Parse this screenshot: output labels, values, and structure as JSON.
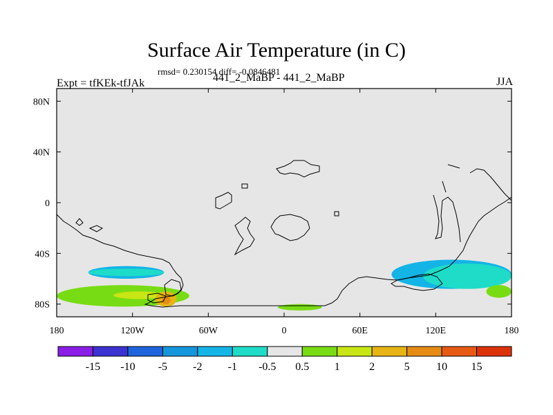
{
  "chart_data": {
    "type": "heatmap",
    "title": "Surface Air Temperature (in C)",
    "stats": "rmsd= 0.230154 diff= -0.0846481",
    "experiment": "Expt = tfKEk-tfJAk",
    "case": "441_2_MaBP - 441_2_MaBP",
    "season": "JJA",
    "x_ticks": [
      "180",
      "120W",
      "60W",
      "0",
      "60E",
      "120E",
      "180"
    ],
    "y_ticks": [
      "80N",
      "40N",
      "0",
      "40S",
      "80S"
    ],
    "xlim": [
      -180,
      180
    ],
    "ylim": [
      -90,
      90
    ],
    "colorbar": {
      "labels": [
        "-15",
        "-10",
        "-5",
        "-2",
        "-1",
        "-0.5",
        "0.5",
        "1",
        "2",
        "5",
        "10",
        "15"
      ],
      "colors": [
        "#8a1ee6",
        "#3c32d2",
        "#1e64dc",
        "#1496dc",
        "#14b4e6",
        "#1edcc8",
        "#e6e6e6",
        "#78dc14",
        "#c8e614",
        "#e6b414",
        "#e68c14",
        "#e65a14",
        "#dc320a"
      ]
    },
    "regions": [
      {
        "value_range": "-2 to -1",
        "color": "#14b4e6",
        "lon": [
          -155,
          -95
        ],
        "lat": [
          -60,
          -50
        ]
      },
      {
        "value_range": "-1 to -0.5",
        "color": "#1edcc8",
        "lon": [
          -155,
          -95
        ],
        "lat": [
          -58,
          -52
        ]
      },
      {
        "value_range": "-2 to -1",
        "color": "#14b4e6",
        "lon": [
          85,
          180
        ],
        "lat": [
          -68,
          -45
        ]
      },
      {
        "value_range": "-1 to -0.5",
        "color": "#1edcc8",
        "lon": [
          110,
          180
        ],
        "lat": [
          -68,
          -48
        ]
      },
      {
        "value_range": "0.5 to 1",
        "color": "#78dc14",
        "lon": [
          -180,
          -75
        ],
        "lat": [
          -82,
          -65
        ]
      },
      {
        "value_range": "0.5 to 1",
        "color": "#78dc14",
        "lon": [
          -5,
          30
        ],
        "lat": [
          -85,
          -80
        ]
      },
      {
        "value_range": "0.5 to 1",
        "color": "#78dc14",
        "lon": [
          160,
          180
        ],
        "lat": [
          -75,
          -65
        ]
      },
      {
        "value_range": "1 to 2",
        "color": "#c8e614",
        "lon": [
          -135,
          -95
        ],
        "lat": [
          -76,
          -70
        ]
      },
      {
        "value_range": "2 to 5",
        "color": "#e6b414",
        "lon": [
          -102,
          -85
        ],
        "lat": [
          -82,
          -70
        ]
      },
      {
        "value_range": "5 to 10",
        "color": "#e68c14",
        "lon": [
          -97,
          -90
        ],
        "lat": [
          -80,
          -74
        ]
      }
    ]
  }
}
